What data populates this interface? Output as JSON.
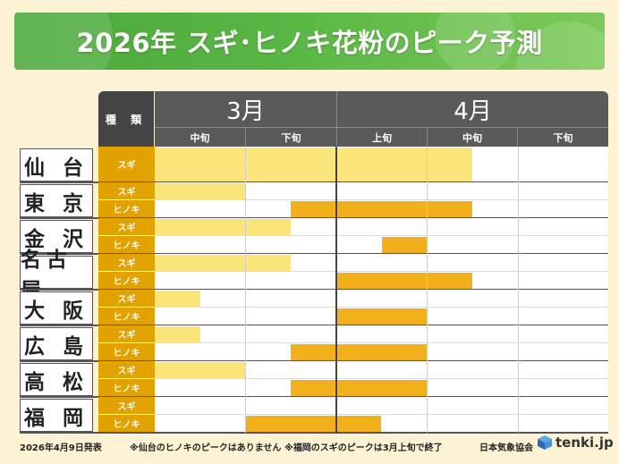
{
  "title": "2026年 スギ･ヒノキ花粉のピーク予測",
  "header": {
    "kind_label": "種 類",
    "months": [
      "3月",
      "4月"
    ],
    "periods": [
      "中旬",
      "下旬",
      "上旬",
      "中旬",
      "下旬"
    ]
  },
  "kinds": {
    "sugi": "スギ",
    "hinoki": "ヒノキ"
  },
  "colors": {
    "sugi": "#fbe57a",
    "hinoki": "#f2b01c",
    "header": "#5a5a5a",
    "banner": "#5cb845"
  },
  "cities": [
    {
      "name": "仙 台",
      "rows": [
        {
          "kind": "sugi",
          "label": "スギ",
          "start": 0,
          "end": 3.5
        }
      ]
    },
    {
      "name": "東 京",
      "rows": [
        {
          "kind": "sugi",
          "label": "スギ",
          "start": 0,
          "end": 1
        },
        {
          "kind": "hinoki",
          "label": "ヒノキ",
          "start": 1.5,
          "end": 3.5
        }
      ]
    },
    {
      "name": "金 沢",
      "rows": [
        {
          "kind": "sugi",
          "label": "スギ",
          "start": 0,
          "end": 1.5
        },
        {
          "kind": "hinoki",
          "label": "ヒノキ",
          "start": 2.5,
          "end": 3
        }
      ]
    },
    {
      "name": "名古屋",
      "rows": [
        {
          "kind": "sugi",
          "label": "スギ",
          "start": 0,
          "end": 1.5
        },
        {
          "kind": "hinoki",
          "label": "ヒノキ",
          "start": 2,
          "end": 3.5
        }
      ]
    },
    {
      "name": "大 阪",
      "rows": [
        {
          "kind": "sugi",
          "label": "スギ",
          "start": 0,
          "end": 0.5
        },
        {
          "kind": "hinoki",
          "label": "ヒノキ",
          "start": 2,
          "end": 3
        }
      ]
    },
    {
      "name": "広 島",
      "rows": [
        {
          "kind": "sugi",
          "label": "スギ",
          "start": 0,
          "end": 0.5
        },
        {
          "kind": "hinoki",
          "label": "ヒノキ",
          "start": 1.5,
          "end": 3
        }
      ]
    },
    {
      "name": "高 松",
      "rows": [
        {
          "kind": "sugi",
          "label": "スギ",
          "start": 0,
          "end": 1
        },
        {
          "kind": "hinoki",
          "label": "ヒノキ",
          "start": 1.5,
          "end": 3
        }
      ]
    },
    {
      "name": "福 岡",
      "rows": [
        {
          "kind": "sugi",
          "label": "スギ",
          "start": 0,
          "end": 0
        },
        {
          "kind": "hinoki",
          "label": "ヒノキ",
          "start": 1,
          "end": 2.5
        }
      ]
    }
  ],
  "footer": {
    "date": "2026年4月9日発表",
    "note1": "※仙台のヒノキのピークはありません",
    "note2": "※福岡のスギのピークは3月上旬で終了",
    "org": "日本気象協会",
    "brand": "tenki.jp"
  }
}
